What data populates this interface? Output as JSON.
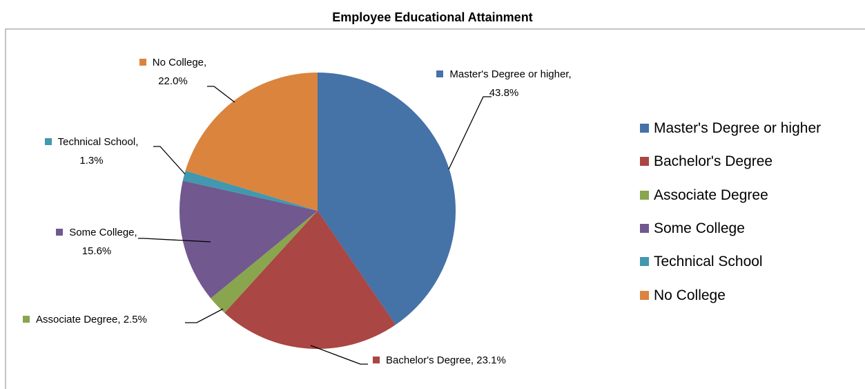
{
  "chart_data": {
    "type": "pie",
    "title": "Employee Educational Attainment",
    "categories": [
      "Master's Degree or higher",
      "Bachelor's Degree",
      "Associate Degree",
      "Some College",
      "Technical School",
      "No College"
    ],
    "values": [
      43.8,
      23.1,
      2.5,
      15.6,
      1.3,
      22.0
    ],
    "value_labels": [
      "Master's Degree or higher,\n43.8%",
      "Bachelor's Degree, 23.1%",
      "Associate Degree, 2.5%",
      "Some College,\n15.6%",
      "Technical School,\n1.3%",
      "No College,\n22.0%"
    ],
    "colors": [
      "#4572a7",
      "#aa4643",
      "#89a54e",
      "#71588f",
      "#4198af",
      "#db843d"
    ],
    "legend": "right"
  }
}
